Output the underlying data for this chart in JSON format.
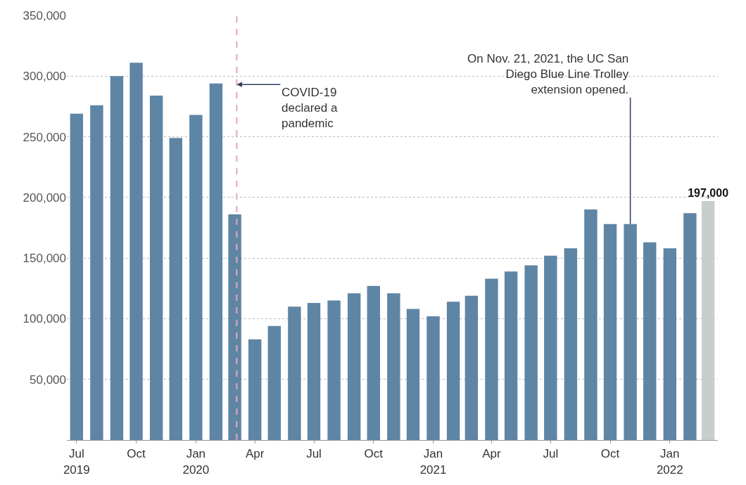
{
  "chart_data": {
    "type": "bar",
    "x": [
      "2019-07",
      "2019-08",
      "2019-09",
      "2019-10",
      "2019-11",
      "2019-12",
      "2020-01",
      "2020-02",
      "2020-03",
      "2020-04",
      "2020-05",
      "2020-06",
      "2020-07",
      "2020-08",
      "2020-09",
      "2020-10",
      "2020-11",
      "2020-12",
      "2021-01",
      "2021-02",
      "2021-03",
      "2021-04",
      "2021-05",
      "2021-06",
      "2021-07",
      "2021-08",
      "2021-09",
      "2021-10",
      "2021-11",
      "2021-12",
      "2022-01",
      "2022-02",
      "2022-03"
    ],
    "values": [
      269000,
      276000,
      300000,
      311000,
      284000,
      249000,
      268000,
      294000,
      186000,
      83000,
      94000,
      110000,
      113000,
      115000,
      121000,
      127000,
      121000,
      108000,
      102000,
      114000,
      119000,
      133000,
      139000,
      144000,
      152000,
      158000,
      190000,
      178000,
      178000,
      163000,
      158000,
      187000,
      197000
    ],
    "colors": [
      "#5f85a5",
      "#5f85a5",
      "#5f85a5",
      "#5f85a5",
      "#5f85a5",
      "#5f85a5",
      "#5f85a5",
      "#5f85a5",
      "#5f85a5",
      "#5f85a5",
      "#5f85a5",
      "#5f85a5",
      "#5f85a5",
      "#5f85a5",
      "#5f85a5",
      "#5f85a5",
      "#5f85a5",
      "#5f85a5",
      "#5f85a5",
      "#5f85a5",
      "#5f85a5",
      "#5f85a5",
      "#5f85a5",
      "#5f85a5",
      "#5f85a5",
      "#5f85a5",
      "#5f85a5",
      "#5f85a5",
      "#5f85a5",
      "#5f85a5",
      "#5f85a5",
      "#5f85a5",
      "#c8cecd"
    ],
    "value_labels": [
      null,
      null,
      null,
      null,
      null,
      null,
      null,
      null,
      null,
      null,
      null,
      null,
      null,
      null,
      null,
      null,
      null,
      null,
      null,
      null,
      null,
      null,
      null,
      null,
      null,
      null,
      null,
      null,
      null,
      null,
      null,
      null,
      "197,000"
    ],
    "xlim": [
      "2019-06-16",
      "2022-03-16"
    ],
    "xticks": [
      {
        "value": "2019-07",
        "label": "Jul\n2019"
      },
      {
        "value": "2019-10",
        "label": "Oct"
      },
      {
        "value": "2020-01",
        "label": "Jan\n2020"
      },
      {
        "value": "2020-04",
        "label": "Apr"
      },
      {
        "value": "2020-07",
        "label": "Jul"
      },
      {
        "value": "2020-10",
        "label": "Oct"
      },
      {
        "value": "2021-01",
        "label": "Jan\n2021"
      },
      {
        "value": "2021-04",
        "label": "Apr"
      },
      {
        "value": "2021-07",
        "label": "Jul"
      },
      {
        "value": "2021-10",
        "label": "Oct"
      },
      {
        "value": "2022-01",
        "label": "Jan\n2022"
      }
    ],
    "ylim": [
      0,
      350000
    ],
    "yticks": [
      {
        "value": 50000,
        "label": "50,000"
      },
      {
        "value": 100000,
        "label": "100,000"
      },
      {
        "value": 150000,
        "label": "150,000"
      },
      {
        "value": 200000,
        "label": "200,000"
      },
      {
        "value": 250000,
        "label": "250,000"
      },
      {
        "value": 300000,
        "label": "300,000"
      },
      {
        "value": 350000,
        "label": "350,000"
      }
    ],
    "grid": "y",
    "ref_lines": [
      {
        "axis": "x",
        "value": "2020-03-04",
        "color": "#e8a6b8",
        "line_style": "dashed"
      }
    ],
    "annotations": [
      {
        "text": "COVID-19\ndeclared a\npandemic",
        "x": "2020-03-04",
        "y": 293000
      },
      {
        "text": "On Nov. 21, 2021, the UC San\nDiego Blue Line Trolley\nextension opened.",
        "x": "2021-11",
        "y": 178000
      }
    ]
  }
}
